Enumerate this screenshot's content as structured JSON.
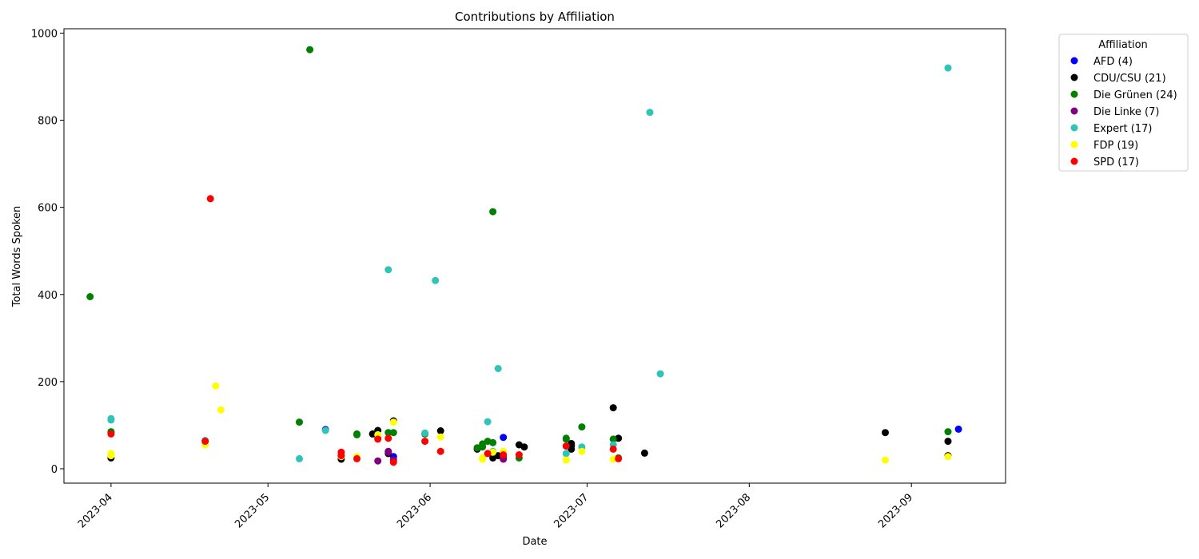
{
  "chart_data": {
    "type": "scatter",
    "title": "Contributions by Affiliation",
    "xlabel": "Date",
    "ylabel": "Total Words Spoken",
    "x_ticks": [
      "2023-04",
      "2023-05",
      "2023-06",
      "2023-07",
      "2023-08",
      "2023-09"
    ],
    "y_ticks": [
      "0",
      "200",
      "400",
      "600",
      "800",
      "1000"
    ],
    "xlim": [
      "2023-03-23",
      "2023-09-19"
    ],
    "ylim": [
      -33,
      1010
    ],
    "grid": false,
    "legend": {
      "title": "Affiliation",
      "placement": "outside-right"
    },
    "series": [
      {
        "name": "AFD (4)",
        "color": "#0000ff",
        "points": [
          [
            "2023-05-12",
            90
          ],
          [
            "2023-05-25",
            28
          ],
          [
            "2023-06-15",
            72
          ],
          [
            "2023-09-10",
            91
          ]
        ]
      },
      {
        "name": "CDU/CSU (21)",
        "color": "#000000",
        "points": [
          [
            "2023-04-01",
            25
          ],
          [
            "2023-05-15",
            22
          ],
          [
            "2023-05-22",
            88
          ],
          [
            "2023-05-24",
            35
          ],
          [
            "2023-05-25",
            110
          ],
          [
            "2023-06-03",
            87
          ],
          [
            "2023-06-10",
            45
          ],
          [
            "2023-06-13",
            25
          ],
          [
            "2023-06-18",
            55
          ],
          [
            "2023-06-19",
            50
          ],
          [
            "2023-06-28",
            58
          ],
          [
            "2023-06-28",
            53
          ],
          [
            "2023-07-06",
            140
          ],
          [
            "2023-07-07",
            70
          ],
          [
            "2023-07-12",
            36
          ],
          [
            "2023-08-27",
            83
          ],
          [
            "2023-09-08",
            63
          ],
          [
            "2023-09-08",
            30
          ],
          [
            "2023-05-21",
            80
          ],
          [
            "2023-06-14",
            30
          ],
          [
            "2023-06-28",
            45
          ]
        ]
      },
      {
        "name": "Die Grünen (24)",
        "color": "#008000",
        "points": [
          [
            "2023-03-28",
            395
          ],
          [
            "2023-04-01",
            85
          ],
          [
            "2023-05-07",
            107
          ],
          [
            "2023-05-09",
            962
          ],
          [
            "2023-05-18",
            78
          ],
          [
            "2023-05-18",
            80
          ],
          [
            "2023-05-24",
            83
          ],
          [
            "2023-05-25",
            83
          ],
          [
            "2023-05-31",
            80
          ],
          [
            "2023-06-10",
            48
          ],
          [
            "2023-06-11",
            57
          ],
          [
            "2023-06-12",
            63
          ],
          [
            "2023-06-13",
            590
          ],
          [
            "2023-06-18",
            25
          ],
          [
            "2023-06-27",
            70
          ],
          [
            "2023-06-30",
            96
          ],
          [
            "2023-07-06",
            68
          ],
          [
            "2023-07-07",
            25
          ],
          [
            "2023-09-08",
            85
          ],
          [
            "2023-04-01",
            82
          ],
          [
            "2023-05-22",
            70
          ],
          [
            "2023-06-11",
            50
          ],
          [
            "2023-06-13",
            60
          ],
          [
            "2023-06-27",
            68
          ]
        ]
      },
      {
        "name": "Die Linke (7)",
        "color": "#800080",
        "points": [
          [
            "2023-05-22",
            18
          ],
          [
            "2023-05-24",
            40
          ],
          [
            "2023-05-25",
            20
          ],
          [
            "2023-06-15",
            25
          ],
          [
            "2023-06-15",
            22
          ],
          [
            "2023-05-24",
            38
          ],
          [
            "2023-06-15",
            28
          ]
        ]
      },
      {
        "name": "Expert (17)",
        "color": "#2ec4b6",
        "points": [
          [
            "2023-04-01",
            115
          ],
          [
            "2023-04-01",
            112
          ],
          [
            "2023-04-19",
            65
          ],
          [
            "2023-05-07",
            23
          ],
          [
            "2023-05-12",
            88
          ],
          [
            "2023-05-24",
            457
          ],
          [
            "2023-05-31",
            82
          ],
          [
            "2023-06-02",
            432
          ],
          [
            "2023-06-12",
            108
          ],
          [
            "2023-06-14",
            230
          ],
          [
            "2023-06-27",
            35
          ],
          [
            "2023-06-30",
            50
          ],
          [
            "2023-07-06",
            55
          ],
          [
            "2023-07-13",
            818
          ],
          [
            "2023-07-15",
            218
          ],
          [
            "2023-09-08",
            920
          ],
          [
            "2023-06-13",
            40
          ]
        ]
      },
      {
        "name": "FDP (19)",
        "color": "#ffff00",
        "points": [
          [
            "2023-04-01",
            35
          ],
          [
            "2023-04-01",
            30
          ],
          [
            "2023-04-19",
            55
          ],
          [
            "2023-04-21",
            190
          ],
          [
            "2023-04-22",
            135
          ],
          [
            "2023-05-15",
            28
          ],
          [
            "2023-05-18",
            28
          ],
          [
            "2023-05-22",
            78
          ],
          [
            "2023-05-25",
            107
          ],
          [
            "2023-06-03",
            73
          ],
          [
            "2023-06-11",
            22
          ],
          [
            "2023-06-13",
            38
          ],
          [
            "2023-06-15",
            40
          ],
          [
            "2023-06-27",
            20
          ],
          [
            "2023-06-30",
            40
          ],
          [
            "2023-07-06",
            22
          ],
          [
            "2023-08-27",
            20
          ],
          [
            "2023-09-08",
            28
          ],
          [
            "2023-06-11",
            25
          ]
        ]
      },
      {
        "name": "SPD (17)",
        "color": "#ff0000",
        "points": [
          [
            "2023-04-01",
            80
          ],
          [
            "2023-04-19",
            63
          ],
          [
            "2023-04-20",
            620
          ],
          [
            "2023-05-15",
            38
          ],
          [
            "2023-05-15",
            30
          ],
          [
            "2023-05-18",
            23
          ],
          [
            "2023-05-22",
            68
          ],
          [
            "2023-05-24",
            70
          ],
          [
            "2023-05-25",
            15
          ],
          [
            "2023-05-31",
            63
          ],
          [
            "2023-06-03",
            40
          ],
          [
            "2023-06-12",
            35
          ],
          [
            "2023-06-15",
            32
          ],
          [
            "2023-06-18",
            32
          ],
          [
            "2023-06-27",
            52
          ],
          [
            "2023-07-06",
            45
          ],
          [
            "2023-07-07",
            23
          ]
        ]
      }
    ]
  }
}
